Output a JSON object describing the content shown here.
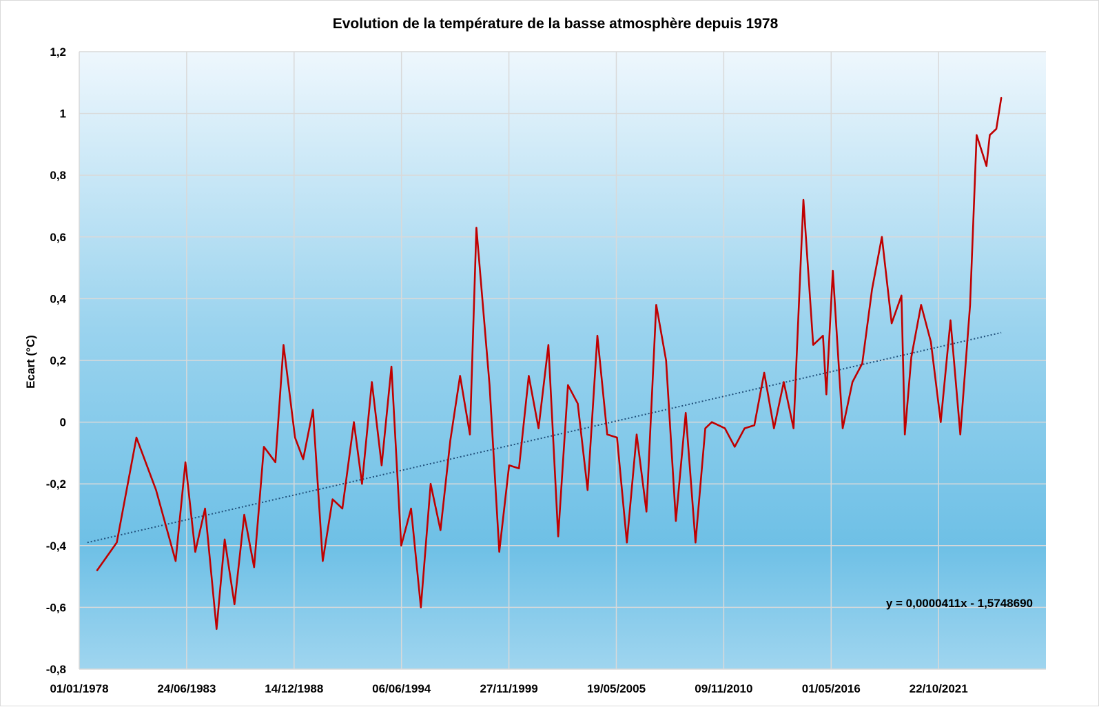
{
  "chart_data": {
    "type": "line",
    "title": "Evolution de la température de la basse atmosphère depuis 1978",
    "xlabel": "",
    "ylabel": "Ecart (°C)",
    "ylim": [
      -0.8,
      1.2
    ],
    "yticks": [
      "-0,8",
      "-0,6",
      "-0,4",
      "-0,2",
      "0",
      "0,2",
      "0,4",
      "0,6",
      "0,8",
      "1",
      "1,2"
    ],
    "xticks": [
      "01/01/1978",
      "24/06/1983",
      "14/12/1988",
      "06/06/1994",
      "27/11/1999",
      "19/05/2005",
      "09/11/2010",
      "01/05/2016",
      "22/10/2021"
    ],
    "xlim": [
      "01/01/1978",
      "13/04/2027"
    ],
    "grid": true,
    "legend": "none",
    "colors": {
      "line": "#c00000",
      "trend": "#1f4e79",
      "grid": "#d9d9d9",
      "bg_top": "#eef7fd",
      "bg_mid": "#6ec0e6",
      "bg_bottom": "#9fd5ef"
    },
    "series": [
      {
        "x": [
          "01/12/1978",
          "01/12/1979",
          "01/12/1980",
          "01/12/1981",
          "01/12/1982",
          "01/06/1983",
          "01/12/1983",
          "01/06/1984",
          "01/01/1985",
          "01/06/1985",
          "01/12/1985",
          "01/06/1986",
          "01/12/1986",
          "01/06/1987",
          "01/01/1988",
          "01/06/1988",
          "01/01/1989",
          "01/06/1989",
          "01/12/1989",
          "01/06/1990",
          "01/12/1990",
          "01/06/1991",
          "01/01/1992",
          "01/06/1992",
          "01/12/1992",
          "01/06/1993",
          "01/12/1993",
          "01/06/1994",
          "01/12/1994",
          "01/06/1995",
          "01/12/1995",
          "01/06/1996",
          "01/12/1996",
          "01/06/1997",
          "01/12/1997",
          "01/04/1998",
          "01/12/1998",
          "01/06/1999",
          "01/12/1999",
          "01/06/2000",
          "01/12/2000",
          "01/06/2001",
          "01/12/2001",
          "01/06/2002",
          "01/12/2002",
          "01/06/2003",
          "01/12/2003",
          "01/06/2004",
          "01/12/2004",
          "01/06/2005",
          "01/12/2005",
          "01/06/2006",
          "01/12/2006",
          "01/06/2007",
          "01/12/2007",
          "01/06/2008",
          "01/12/2008",
          "01/06/2009",
          "01/12/2009",
          "01/04/2010",
          "01/12/2010",
          "01/06/2011",
          "01/12/2011",
          "01/06/2012",
          "01/12/2012",
          "01/06/2013",
          "01/12/2013",
          "01/06/2014",
          "01/12/2014",
          "01/06/2015",
          "01/12/2015",
          "01/02/2016",
          "01/06/2016",
          "01/12/2016",
          "01/06/2017",
          "01/12/2017",
          "01/06/2018",
          "01/12/2018",
          "01/06/2019",
          "01/12/2019",
          "01/02/2020",
          "01/06/2020",
          "01/12/2020",
          "01/06/2021",
          "01/12/2021",
          "01/06/2022",
          "01/12/2022",
          "01/06/2023",
          "01/10/2023",
          "01/04/2024",
          "01/06/2024",
          "01/10/2024",
          "01/01/2025"
        ],
        "values": [
          -0.48,
          -0.39,
          -0.05,
          -0.22,
          -0.45,
          -0.13,
          -0.42,
          -0.28,
          -0.67,
          -0.38,
          -0.59,
          -0.3,
          -0.47,
          -0.08,
          -0.13,
          0.25,
          -0.05,
          -0.12,
          0.04,
          -0.45,
          -0.25,
          -0.28,
          0.0,
          -0.2,
          0.13,
          -0.14,
          0.18,
          -0.4,
          -0.28,
          -0.6,
          -0.2,
          -0.35,
          -0.06,
          0.15,
          -0.04,
          0.63,
          0.12,
          -0.42,
          -0.14,
          -0.15,
          0.15,
          -0.02,
          0.25,
          -0.37,
          0.12,
          0.06,
          -0.22,
          0.28,
          -0.04,
          -0.05,
          -0.39,
          -0.04,
          -0.29,
          0.38,
          0.2,
          -0.32,
          0.03,
          -0.39,
          -0.02,
          0.0,
          -0.02,
          -0.08,
          -0.02,
          -0.01,
          0.16,
          -0.02,
          0.13,
          -0.02,
          0.72,
          0.25,
          0.28,
          0.09,
          0.49,
          -0.02,
          0.13,
          0.19,
          0.43,
          0.6,
          0.32,
          0.41,
          -0.04,
          0.21,
          0.38,
          0.26,
          0.0,
          0.33,
          -0.04,
          0.38,
          0.93,
          0.83,
          0.93,
          0.95,
          1.05
        ]
      }
    ],
    "trendline": {
      "label": "y = 0,0000411x - 1,5748690",
      "style": "dotted",
      "start": {
        "x": "01/06/1978",
        "y": -0.39
      },
      "end": {
        "x": "01/01/2025",
        "y": 0.29
      }
    }
  }
}
